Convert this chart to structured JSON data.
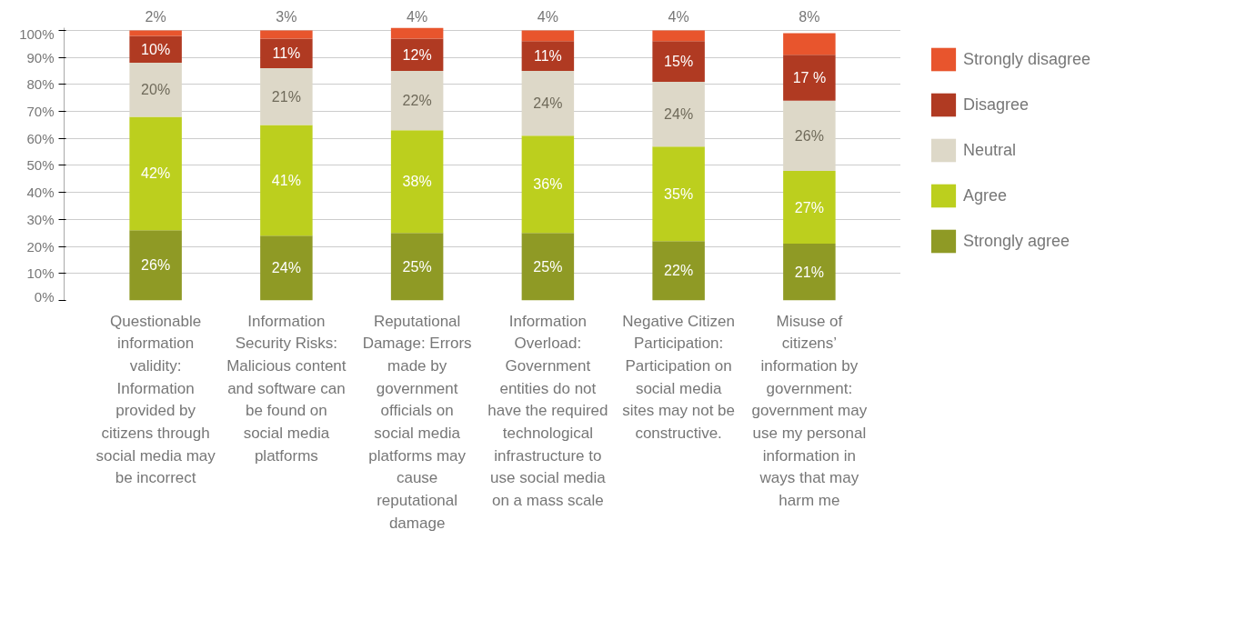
{
  "chart_data": {
    "type": "bar",
    "stacked": true,
    "categories": [
      "Questionable information validity: Information provided by citizens through social media may be incorrect",
      "Information Security Risks: Malicious content and software can be found on social media platforms",
      "Reputational Damage: Errors made by government officials on social media platforms may cause reputational damage",
      "Information Overload: Government entities do not have the required technological infrastructure to use social media on a mass scale",
      "Negative Citizen Participation: Participation on social media sites may not be constructive.",
      "Misuse of citizens’ information by government: government may use my personal information in ways that may harm me"
    ],
    "series": [
      {
        "name": "Strongly agree",
        "color": "#8f9a25",
        "values": [
          26,
          24,
          25,
          25,
          22,
          21
        ],
        "value_labels": [
          "26%",
          "24%",
          "25%",
          "25%",
          "22%",
          "21%"
        ]
      },
      {
        "name": "Agree",
        "color": "#bccf1e",
        "values": [
          42,
          41,
          38,
          36,
          35,
          27
        ],
        "value_labels": [
          "42%",
          "41%",
          "38%",
          "36%",
          "35%",
          "27%"
        ]
      },
      {
        "name": "Neutral",
        "color": "#ddd8c8",
        "values": [
          20,
          21,
          22,
          24,
          24,
          26
        ],
        "value_labels": [
          "20%",
          "21%",
          "22%",
          "24%",
          "24%",
          "26%"
        ]
      },
      {
        "name": "Disagree",
        "color": "#b03a22",
        "values": [
          10,
          11,
          12,
          11,
          15,
          17
        ],
        "value_labels": [
          "10%",
          "11%",
          "12%",
          "11%",
          "15%",
          "17 %"
        ]
      },
      {
        "name": "Strongly disagree",
        "color": "#e8552d",
        "values": [
          2,
          3,
          4,
          4,
          4,
          8
        ],
        "value_labels": [
          "2%",
          "3%",
          "4%",
          "4%",
          "4%",
          "8%"
        ]
      }
    ],
    "ylim": [
      0,
      101
    ],
    "yticks": [
      {
        "value": 0,
        "label": "0%"
      },
      {
        "value": 10,
        "label": "10%"
      },
      {
        "value": 20,
        "label": "20%"
      },
      {
        "value": 30,
        "label": "30%"
      },
      {
        "value": 40,
        "label": "40%"
      },
      {
        "value": 50,
        "label": "50%"
      },
      {
        "value": 60,
        "label": "60%"
      },
      {
        "value": 70,
        "label": "70%"
      },
      {
        "value": 80,
        "label": "80%"
      },
      {
        "value": 90,
        "label": "90%"
      },
      {
        "value": 100,
        "label": "100%"
      }
    ],
    "grid": "y",
    "legend": "right"
  }
}
